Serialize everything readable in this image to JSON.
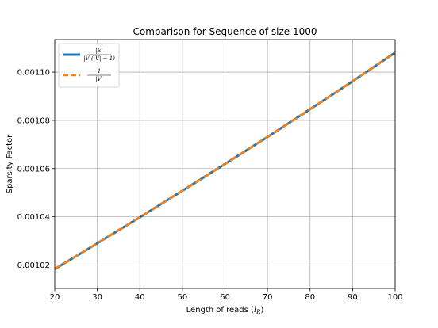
{
  "chart_data": {
    "type": "line",
    "title": "Comparison for Sequence of size 1000",
    "xlabel": "Length of reads ($l_R$)",
    "xlabel_main": "Length of reads (",
    "xlabel_sub_var": "l",
    "xlabel_sub": "R",
    "xlabel_close": ")",
    "ylabel": "Sparsity Factor",
    "xlim": [
      20,
      100
    ],
    "ylim": [
      1.0103,
      1.1135
    ],
    "y_scale_note": "values x 1e-3",
    "xticks": [
      20,
      30,
      40,
      50,
      60,
      70,
      80,
      90,
      100
    ],
    "xtick_labels": [
      "20",
      "30",
      "40",
      "50",
      "60",
      "70",
      "80",
      "90",
      "100"
    ],
    "yticks": [
      1.02,
      1.04,
      1.06,
      1.08,
      1.1
    ],
    "ytick_labels": [
      "0.00102",
      "0.00104",
      "0.00106",
      "0.00108",
      "0.00110"
    ],
    "grid": true,
    "legend_position": "upper-left",
    "x": [
      20,
      30,
      40,
      50,
      60,
      70,
      80,
      90,
      100
    ],
    "series": [
      {
        "name": "|E| / (|V|(|V|-1))",
        "legend_num": "|E|",
        "legend_den": "|V|(|V| − 1)",
        "color": "#1f77b4",
        "style": "solid",
        "values": [
          1.0183,
          1.029,
          1.0398,
          1.0508,
          1.0619,
          1.0731,
          1.0846,
          1.0962,
          1.1081
        ]
      },
      {
        "name": "1 / |V|",
        "legend_num": "1",
        "legend_den": "|V|",
        "color": "#ff7f0e",
        "style": "dashed",
        "values": [
          1.0183,
          1.029,
          1.0398,
          1.0508,
          1.0619,
          1.0731,
          1.0846,
          1.0962,
          1.1081
        ]
      }
    ]
  }
}
